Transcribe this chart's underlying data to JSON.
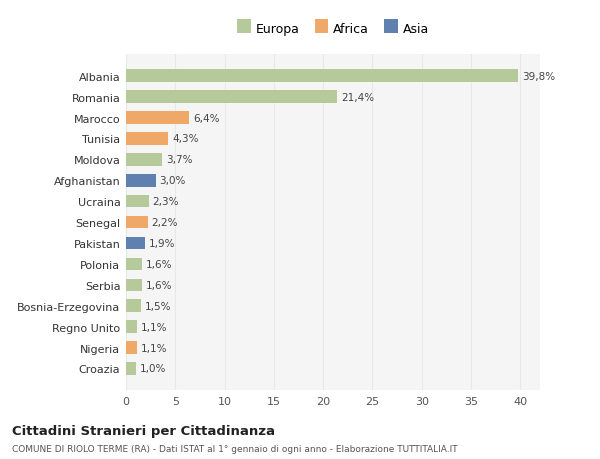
{
  "categories": [
    "Croazia",
    "Nigeria",
    "Regno Unito",
    "Bosnia-Erzegovina",
    "Serbia",
    "Polonia",
    "Pakistan",
    "Senegal",
    "Ucraina",
    "Afghanistan",
    "Moldova",
    "Tunisia",
    "Marocco",
    "Romania",
    "Albania"
  ],
  "values": [
    1.0,
    1.1,
    1.1,
    1.5,
    1.6,
    1.6,
    1.9,
    2.2,
    2.3,
    3.0,
    3.7,
    4.3,
    6.4,
    21.4,
    39.8
  ],
  "colors": [
    "#b5c99a",
    "#f0a868",
    "#b5c99a",
    "#b5c99a",
    "#b5c99a",
    "#b5c99a",
    "#6080b0",
    "#f0a868",
    "#b5c99a",
    "#6080b0",
    "#b5c99a",
    "#f0a868",
    "#f0a868",
    "#b5c99a",
    "#b5c99a"
  ],
  "labels": [
    "1,0%",
    "1,1%",
    "1,1%",
    "1,5%",
    "1,6%",
    "1,6%",
    "1,9%",
    "2,2%",
    "2,3%",
    "3,0%",
    "3,7%",
    "4,3%",
    "6,4%",
    "21,4%",
    "39,8%"
  ],
  "legend_labels": [
    "Europa",
    "Africa",
    "Asia"
  ],
  "legend_colors": [
    "#b5c99a",
    "#f0a868",
    "#6080b0"
  ],
  "title": "Cittadini Stranieri per Cittadinanza",
  "subtitle": "COMUNE DI RIOLO TERME (RA) - Dati ISTAT al 1° gennaio di ogni anno - Elaborazione TUTTITALIA.IT",
  "xlim": [
    0,
    42
  ],
  "xticks": [
    0,
    5,
    10,
    15,
    20,
    25,
    30,
    35,
    40
  ],
  "fig_background": "#ffffff",
  "axes_background": "#ffffff",
  "grid_color": "#e8e8e8"
}
